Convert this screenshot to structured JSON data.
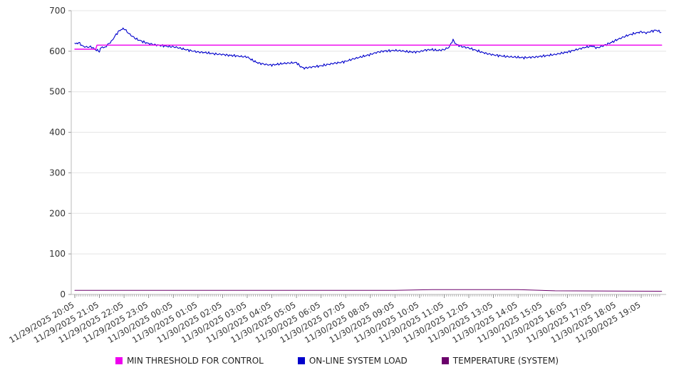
{
  "chart_data": {
    "type": "line",
    "title": "",
    "grid": true,
    "legend_position": "bottom",
    "x_axis": {
      "hours_span": 23.83,
      "categories": [
        "11/29/2025 20:05",
        "11/29/2025 21:05",
        "11/29/2025 22:05",
        "11/29/2025 23:05",
        "11/30/2025 00:05",
        "11/30/2025 01:05",
        "11/30/2025 02:05",
        "11/30/2025 03:05",
        "11/30/2025 04:05",
        "11/30/2025 05:05",
        "11/30/2025 06:05",
        "11/30/2025 07:05",
        "11/30/2025 08:05",
        "11/30/2025 09:05",
        "11/30/2025 10:05",
        "11/30/2025 11:05",
        "11/30/2025 12:05",
        "11/30/2025 13:05",
        "11/30/2025 14:05",
        "11/30/2025 15:05",
        "11/30/2025 16:05",
        "11/30/2025 17:05",
        "11/30/2025 18:05",
        "11/30/2025 19:05"
      ]
    },
    "y_axis": {
      "min": 0,
      "max": 700,
      "ticks": [
        0,
        100,
        200,
        300,
        400,
        500,
        600,
        700
      ]
    },
    "series": [
      {
        "name": "MIN THRESHOLD FOR CONTROL",
        "color": "#ee00ee",
        "width": 1.4,
        "noisy": false,
        "points": [
          [
            0,
            605
          ],
          [
            0.85,
            605
          ],
          [
            0.9,
            615
          ],
          [
            23.83,
            615
          ]
        ]
      },
      {
        "name": "ON-LINE SYSTEM LOAD",
        "color": "#0000cc",
        "width": 1.1,
        "noisy": true,
        "points": [
          [
            0,
            618
          ],
          [
            0.17,
            621
          ],
          [
            0.33,
            612
          ],
          [
            0.5,
            610
          ],
          [
            0.67,
            611
          ],
          [
            0.83,
            604
          ],
          [
            1,
            600
          ],
          [
            1.1,
            612
          ],
          [
            1.2,
            608
          ],
          [
            1.33,
            616
          ],
          [
            1.5,
            625
          ],
          [
            1.67,
            641
          ],
          [
            1.83,
            652
          ],
          [
            2,
            656
          ],
          [
            2.17,
            645
          ],
          [
            2.33,
            637
          ],
          [
            2.5,
            630
          ],
          [
            2.67,
            626
          ],
          [
            2.83,
            622
          ],
          [
            3,
            619
          ],
          [
            3.25,
            616
          ],
          [
            3.5,
            614
          ],
          [
            3.75,
            612
          ],
          [
            4,
            611
          ],
          [
            4.25,
            608
          ],
          [
            4.5,
            604
          ],
          [
            4.75,
            601
          ],
          [
            5,
            598
          ],
          [
            5.25,
            597
          ],
          [
            5.5,
            595
          ],
          [
            5.75,
            593
          ],
          [
            6,
            592
          ],
          [
            6.25,
            590
          ],
          [
            6.5,
            589
          ],
          [
            6.75,
            587
          ],
          [
            7,
            586
          ],
          [
            7.2,
            578
          ],
          [
            7.4,
            572
          ],
          [
            7.6,
            569
          ],
          [
            7.8,
            567
          ],
          [
            8,
            566
          ],
          [
            8.25,
            568
          ],
          [
            8.5,
            570
          ],
          [
            8.75,
            571
          ],
          [
            9,
            572
          ],
          [
            9.15,
            563
          ],
          [
            9.3,
            558
          ],
          [
            9.5,
            560
          ],
          [
            9.75,
            562
          ],
          [
            10,
            564
          ],
          [
            10.25,
            567
          ],
          [
            10.5,
            570
          ],
          [
            10.75,
            572
          ],
          [
            11,
            575
          ],
          [
            11.25,
            580
          ],
          [
            11.5,
            584
          ],
          [
            11.75,
            588
          ],
          [
            12,
            592
          ],
          [
            12.25,
            597
          ],
          [
            12.5,
            600
          ],
          [
            12.75,
            601
          ],
          [
            13,
            602
          ],
          [
            13.25,
            601
          ],
          [
            13.5,
            599
          ],
          [
            13.75,
            598
          ],
          [
            14,
            599
          ],
          [
            14.25,
            603
          ],
          [
            14.5,
            604
          ],
          [
            14.75,
            602
          ],
          [
            15,
            604
          ],
          [
            15.2,
            610
          ],
          [
            15.35,
            628
          ],
          [
            15.5,
            616
          ],
          [
            15.75,
            611
          ],
          [
            16,
            608
          ],
          [
            16.25,
            603
          ],
          [
            16.5,
            598
          ],
          [
            16.75,
            594
          ],
          [
            17,
            591
          ],
          [
            17.25,
            589
          ],
          [
            17.5,
            587
          ],
          [
            17.75,
            586
          ],
          [
            18,
            585
          ],
          [
            18.25,
            584
          ],
          [
            18.5,
            585
          ],
          [
            18.75,
            586
          ],
          [
            19,
            588
          ],
          [
            19.25,
            590
          ],
          [
            19.5,
            592
          ],
          [
            19.75,
            595
          ],
          [
            20,
            598
          ],
          [
            20.25,
            602
          ],
          [
            20.5,
            606
          ],
          [
            20.75,
            610
          ],
          [
            21,
            613
          ],
          [
            21.2,
            608
          ],
          [
            21.4,
            612
          ],
          [
            21.6,
            617
          ],
          [
            21.8,
            622
          ],
          [
            22,
            628
          ],
          [
            22.2,
            633
          ],
          [
            22.4,
            638
          ],
          [
            22.6,
            642
          ],
          [
            22.8,
            645
          ],
          [
            23,
            648
          ],
          [
            23.2,
            645
          ],
          [
            23.4,
            649
          ],
          [
            23.6,
            652
          ],
          [
            23.8,
            647
          ]
        ]
      },
      {
        "name": "TEMPERATURE (SYSTEM)",
        "color": "#6b006b",
        "width": 1,
        "noisy": false,
        "points": [
          [
            0,
            10
          ],
          [
            13,
            10
          ],
          [
            14.5,
            12
          ],
          [
            18,
            12
          ],
          [
            19.5,
            9
          ],
          [
            23.83,
            8
          ]
        ]
      }
    ]
  }
}
